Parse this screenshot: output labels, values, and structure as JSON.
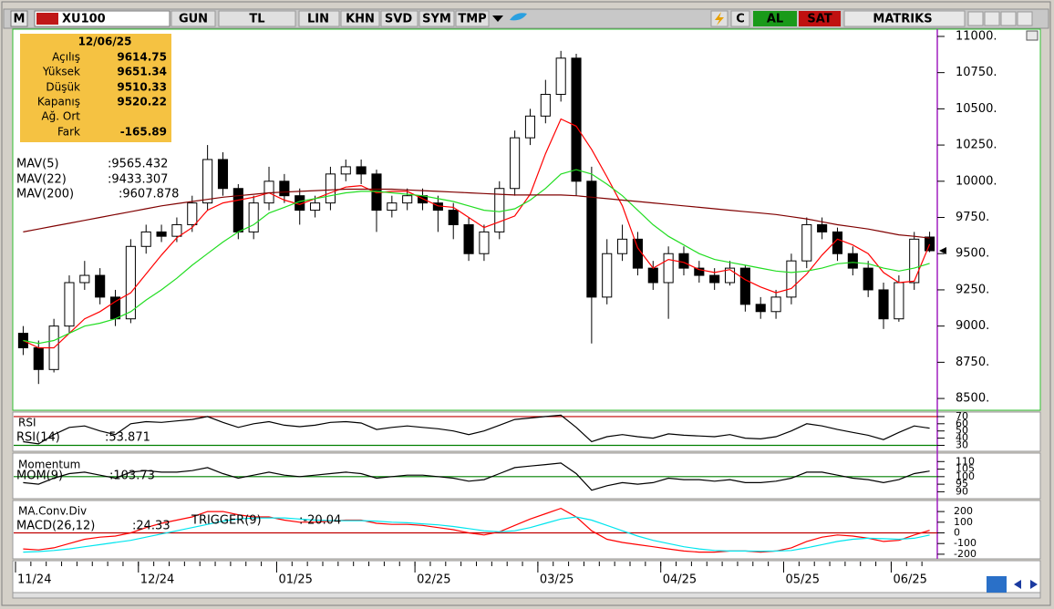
{
  "toolbar": {
    "symbol": "XU100",
    "items": [
      "GUN",
      "TL",
      "LIN",
      "KHN",
      "SVD",
      "SYM",
      "TMP"
    ],
    "buy": "AL",
    "sell": "SAT",
    "brand": "MATRIKS"
  },
  "info_box": {
    "date": "12/06/25",
    "labels": [
      "Açılış",
      "Yüksek",
      "Düşük",
      "Kapanış",
      "Ağ. Ort",
      "Fark"
    ],
    "difference": "-165.89"
  },
  "chart_data": [
    {
      "type": "candlestick",
      "categories": [
        "11/24",
        null,
        null,
        null,
        null,
        null,
        null,
        null,
        "12/24",
        null,
        null,
        null,
        null,
        null,
        null,
        null,
        null,
        "01/25",
        null,
        null,
        null,
        null,
        null,
        null,
        null,
        null,
        "02/25",
        null,
        null,
        null,
        null,
        null,
        null,
        null,
        "03/25",
        null,
        null,
        null,
        null,
        null,
        null,
        null,
        "04/25",
        null,
        null,
        null,
        null,
        null,
        null,
        null,
        "05/25",
        null,
        null,
        null,
        null,
        null,
        null,
        "06/25",
        null,
        null
      ],
      "open": [
        8950,
        8850,
        8700,
        9000,
        9300,
        9350,
        9200,
        9050,
        9550,
        9650,
        9620,
        9700,
        9850,
        10150,
        9950,
        9650,
        9850,
        10000,
        9900,
        9800,
        9850,
        10050,
        10100,
        10050,
        9800,
        9850,
        9900,
        9850,
        9800,
        9700,
        9500,
        9650,
        9950,
        10300,
        10450,
        10600,
        10850,
        10000,
        9200,
        9500,
        9600,
        9400,
        9300,
        9500,
        9400,
        9350,
        9300,
        9400,
        9150,
        9100,
        9200,
        9450,
        9700,
        9650,
        9500,
        9400,
        9250,
        9050,
        9300,
        9614.75
      ],
      "high": [
        9000,
        8900,
        9050,
        9350,
        9450,
        9400,
        9250,
        9600,
        9700,
        9700,
        9750,
        9900,
        10250,
        10200,
        9980,
        9900,
        10100,
        10050,
        9950,
        9900,
        10100,
        10150,
        10150,
        10080,
        9900,
        9950,
        9950,
        9900,
        9850,
        9750,
        9700,
        10000,
        10350,
        10500,
        10700,
        10900,
        10880,
        10100,
        9600,
        9700,
        9650,
        9450,
        9550,
        9550,
        9450,
        9400,
        9450,
        9420,
        9200,
        9250,
        9500,
        9750,
        9750,
        9680,
        9550,
        9450,
        9300,
        9350,
        9650,
        9651.34
      ],
      "low": [
        8800,
        8600,
        8680,
        8950,
        9250,
        9150,
        9000,
        9020,
        9500,
        9580,
        9580,
        9650,
        9800,
        9900,
        9600,
        9600,
        9800,
        9850,
        9700,
        9750,
        9800,
        10000,
        9980,
        9650,
        9750,
        9800,
        9800,
        9650,
        9600,
        9450,
        9450,
        9600,
        9900,
        10250,
        10400,
        10550,
        9900,
        8880,
        9150,
        9450,
        9350,
        9250,
        9050,
        9350,
        9300,
        9250,
        9280,
        9100,
        9050,
        9050,
        9150,
        9400,
        9600,
        9450,
        9350,
        9200,
        8980,
        9030,
        9250,
        9510.33
      ],
      "close": [
        8850,
        8700,
        9000,
        9300,
        9350,
        9200,
        9050,
        9550,
        9650,
        9620,
        9700,
        9850,
        10150,
        9950,
        9650,
        9850,
        10000,
        9900,
        9800,
        9850,
        10050,
        10100,
        10050,
        9800,
        9850,
        9900,
        9850,
        9800,
        9700,
        9500,
        9650,
        9950,
        10300,
        10450,
        10600,
        10850,
        10000,
        9200,
        9500,
        9600,
        9400,
        9300,
        9500,
        9400,
        9350,
        9300,
        9400,
        9150,
        9100,
        9200,
        9450,
        9700,
        9650,
        9500,
        9400,
        9250,
        9050,
        9300,
        9600,
        9520.22
      ],
      "up_color": "#ffffff",
      "down_color": "#000000",
      "series": [
        {
          "name": "MAV(5)",
          "color": "#ff0000",
          "value_label": ":9565.432",
          "values": [
            8900,
            8850,
            8850,
            8950,
            9050,
            9100,
            9170,
            9230,
            9360,
            9490,
            9610,
            9680,
            9800,
            9850,
            9870,
            9890,
            9920,
            9870,
            9840,
            9880,
            9920,
            9960,
            9970,
            9920,
            9930,
            9930,
            9880,
            9830,
            9820,
            9750,
            9680,
            9720,
            9760,
            9910,
            10190,
            10430,
            10380,
            10220,
            10030,
            9830,
            9540,
            9400,
            9460,
            9440,
            9390,
            9370,
            9390,
            9320,
            9270,
            9230,
            9260,
            9360,
            9490,
            9600,
            9560,
            9500,
            9370,
            9300,
            9310,
            9565
          ]
        },
        {
          "name": "MAV(22)",
          "color": "#22dd22",
          "value_label": ":9433.307",
          "values": [
            8900,
            8880,
            8900,
            8950,
            9000,
            9020,
            9050,
            9100,
            9180,
            9250,
            9330,
            9420,
            9500,
            9580,
            9650,
            9700,
            9780,
            9820,
            9860,
            9880,
            9900,
            9920,
            9930,
            9930,
            9920,
            9910,
            9900,
            9880,
            9860,
            9830,
            9800,
            9790,
            9810,
            9870,
            9950,
            10050,
            10080,
            10050,
            9980,
            9900,
            9800,
            9700,
            9620,
            9560,
            9500,
            9460,
            9440,
            9420,
            9400,
            9380,
            9370,
            9380,
            9400,
            9430,
            9440,
            9430,
            9400,
            9380,
            9400,
            9433
          ]
        },
        {
          "name": "MAV(200)",
          "color": "#800000",
          "value_label": ":9607.878",
          "values": [
            9650,
            9670,
            9690,
            9710,
            9730,
            9750,
            9770,
            9790,
            9810,
            9830,
            9845,
            9860,
            9875,
            9890,
            9900,
            9910,
            9920,
            9925,
            9930,
            9935,
            9940,
            9945,
            9945,
            9945,
            9945,
            9940,
            9935,
            9930,
            9925,
            9920,
            9915,
            9910,
            9905,
            9905,
            9905,
            9905,
            9900,
            9890,
            9880,
            9870,
            9860,
            9850,
            9840,
            9830,
            9820,
            9810,
            9800,
            9790,
            9780,
            9770,
            9755,
            9740,
            9720,
            9700,
            9685,
            9670,
            9650,
            9630,
            9620,
            9608
          ]
        }
      ],
      "ylim": [
        8425,
        11050
      ],
      "yticks": [
        {
          "value": 8500,
          "label": "8500."
        },
        {
          "value": 8750,
          "label": "8750."
        },
        {
          "value": 9000,
          "label": "9000."
        },
        {
          "value": 9250,
          "label": "9250."
        },
        {
          "value": 9500,
          "label": "9500."
        },
        {
          "value": 9750,
          "label": "9750."
        },
        {
          "value": 10000,
          "label": "10000."
        },
        {
          "value": 10250,
          "label": "10250."
        },
        {
          "value": 10500,
          "label": "10500."
        },
        {
          "value": 10750,
          "label": "10750."
        },
        {
          "value": 11000,
          "label": "11000."
        }
      ]
    },
    {
      "type": "line",
      "title": "RSI",
      "series": [
        {
          "name": "RSI(14)",
          "color": "#000000",
          "value_label": ":53.871",
          "values": [
            35,
            32,
            45,
            55,
            57,
            50,
            45,
            60,
            63,
            62,
            64,
            66,
            70,
            62,
            55,
            60,
            63,
            58,
            56,
            58,
            62,
            63,
            61,
            52,
            55,
            57,
            55,
            53,
            50,
            45,
            50,
            58,
            66,
            68,
            70,
            72,
            55,
            35,
            42,
            45,
            42,
            40,
            46,
            44,
            43,
            42,
            45,
            40,
            39,
            42,
            50,
            60,
            57,
            52,
            48,
            44,
            38,
            48,
            57,
            53.871
          ]
        }
      ],
      "levels": [
        {
          "value": 70,
          "color": "#c00000"
        },
        {
          "value": 30,
          "color": "#008000"
        }
      ],
      "ylim": [
        23,
        75
      ],
      "yticks": [
        30,
        40,
        50,
        60,
        70
      ]
    },
    {
      "type": "line",
      "title": "Momentum",
      "series": [
        {
          "name": "MOM(9)",
          "color": "#000000",
          "value_label": ":103.73",
          "values": [
            96,
            95,
            99,
            102,
            103,
            101,
            99,
            103,
            104,
            103,
            103,
            104,
            106,
            102,
            99,
            101,
            103,
            101,
            100,
            101,
            102,
            103,
            102,
            99,
            100,
            101,
            101,
            100,
            99,
            97,
            98,
            102,
            106,
            107,
            108,
            109,
            102,
            91,
            94,
            96,
            95,
            96,
            99,
            98,
            98,
            97,
            98,
            96,
            96,
            97,
            99,
            103,
            103,
            101,
            99,
            98,
            96,
            98,
            102,
            103.73
          ]
        }
      ],
      "levels": [
        {
          "value": 100,
          "color": "#008000"
        }
      ],
      "ylim": [
        86,
        115
      ],
      "yticks": [
        90,
        95,
        100,
        105,
        110
      ]
    },
    {
      "type": "line",
      "title": "MA.Conv.Div",
      "series": [
        {
          "name": "MACD(26,12)",
          "color": "#ff0000",
          "value_label": ":24.33",
          "values": [
            -150,
            -160,
            -140,
            -100,
            -60,
            -40,
            -30,
            0,
            50,
            90,
            120,
            150,
            200,
            200,
            170,
            150,
            150,
            120,
            100,
            100,
            110,
            120,
            120,
            90,
            80,
            80,
            70,
            50,
            30,
            0,
            -20,
            10,
            70,
            130,
            180,
            230,
            150,
            20,
            -60,
            -90,
            -110,
            -130,
            -150,
            -170,
            -180,
            -180,
            -170,
            -170,
            -180,
            -170,
            -140,
            -80,
            -40,
            -20,
            -30,
            -50,
            -80,
            -70,
            -20,
            24.33
          ]
        },
        {
          "name": "TRIGGER(9)",
          "color": "#00e5ee",
          "value_label": ":-20.04",
          "values": [
            -180,
            -175,
            -165,
            -150,
            -130,
            -110,
            -90,
            -70,
            -40,
            -10,
            20,
            50,
            80,
            110,
            130,
            140,
            140,
            140,
            130,
            120,
            115,
            115,
            115,
            110,
            100,
            95,
            85,
            75,
            60,
            40,
            20,
            10,
            20,
            50,
            90,
            130,
            150,
            120,
            70,
            20,
            -30,
            -70,
            -100,
            -130,
            -150,
            -165,
            -170,
            -170,
            -172,
            -170,
            -165,
            -140,
            -110,
            -80,
            -60,
            -50,
            -55,
            -60,
            -50,
            -20.04
          ]
        }
      ],
      "levels": [
        {
          "value": 0,
          "color": "#c00000"
        }
      ],
      "ylim": [
        -235,
        295
      ],
      "yticks": [
        -200,
        -100,
        0,
        100,
        200
      ]
    }
  ]
}
